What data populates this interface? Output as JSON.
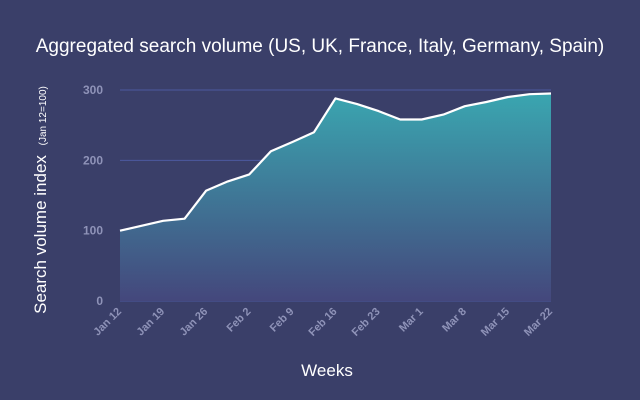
{
  "chart_data": {
    "type": "area",
    "title": "Aggregated search volume (US, UK, France, Italy, Germany, Spain)",
    "xlabel": "Weeks",
    "ylabel": "Search volume index",
    "ylabel_note": "(Jan 12=100)",
    "categories": [
      "Jan 12",
      "Jan 19",
      "Jan 26",
      "Feb 2",
      "Feb 9",
      "Feb 16",
      "Feb 23",
      "Mar 1",
      "Mar 8",
      "Mar 15",
      "Mar 22"
    ],
    "x_tick_labels": [
      "Jan 12",
      "Jan 19",
      "Jan 26",
      "Feb 2",
      "Feb 9",
      "Feb 16",
      "Feb 23",
      "Mar 1",
      "Mar 8",
      "Mar 15",
      "Mar 22"
    ],
    "x": [
      0,
      1,
      1.5,
      2,
      2.5,
      3,
      3.5,
      4,
      4.5,
      5,
      5.5,
      6,
      6.5,
      7,
      7.5,
      8,
      8.5,
      9,
      9.5,
      10
    ],
    "values": [
      100,
      114,
      117,
      157,
      170,
      180,
      213,
      226,
      240,
      288,
      280,
      270,
      258,
      258,
      265,
      277,
      283,
      290,
      294,
      295
    ],
    "series": [
      {
        "values": [
          100,
          114,
          117,
          157,
          170,
          180,
          213,
          226,
          240,
          288,
          280,
          270,
          258,
          258,
          265,
          277,
          283,
          290,
          294,
          295
        ]
      }
    ],
    "ylim": [
      0,
      300
    ],
    "yticks": [
      0,
      100,
      200,
      300
    ],
    "grid": true,
    "legend": "none",
    "colors": {
      "background": "#3a3f69",
      "area_top": "#3aa6b0",
      "area_bottom": "#44477c",
      "line": "#ffffff",
      "grid": "#4c5aa0",
      "tick_text": "#8f93b8",
      "text": "#ffffff"
    }
  }
}
